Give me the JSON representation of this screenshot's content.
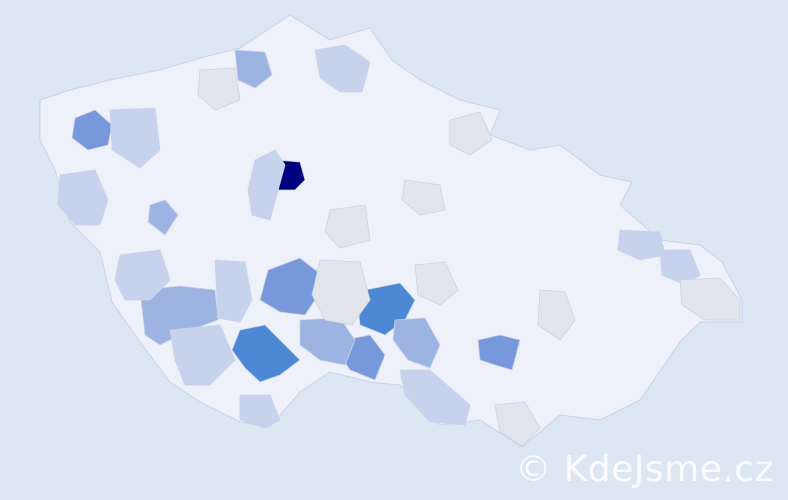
{
  "map": {
    "colors": {
      "background": "#dde6f3",
      "base": "#eef1f9",
      "border": "#c9d2ea",
      "grey": "#e2e5ec",
      "light": "#c7d3ec",
      "mid": "#9db3e2",
      "strong": "#7799dc",
      "bright": "#4d88d4",
      "max": "#00007f"
    }
  },
  "watermark": {
    "text": "© KdeJsme.cz"
  }
}
